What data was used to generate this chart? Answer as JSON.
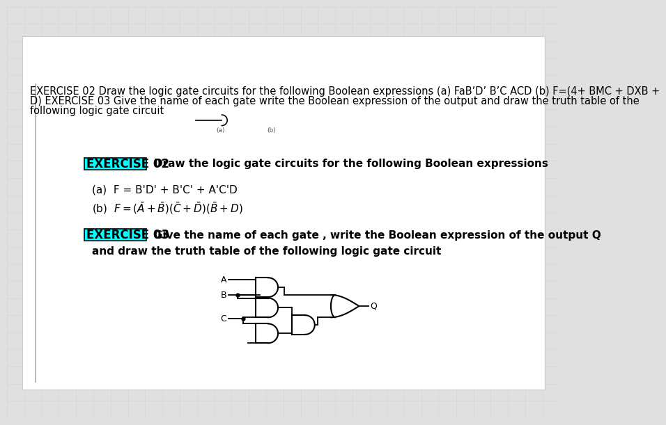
{
  "bg_color": "#e0e0e0",
  "paper_color": "#ffffff",
  "grid_color": "#cccccc",
  "header_line1": "EXERCISE 02 Draw the logic gate circuits for the following Boolean expressions (a) FaB’D’ B’C ACD (b) F=(4+ BMC + DXB +",
  "header_line2": "D) EXERCISE 03 Give the name of each gate write the Boolean expression of the output and draw the truth table of the",
  "header_line3": "following logic gate circuit",
  "ex02_label": "EXERCISE 02",
  "ex02_desc": "Draw the logic gate circuits for the following Boolean expressions",
  "ex03_label": "EXERCISE 03",
  "ex03_desc": "Give the name of each gate , write the Boolean expression of the output Q",
  "ex03_desc2": "and draw the truth table of the following logic gate circuit",
  "highlight_color": "#00ffff",
  "text_color": "#000000",
  "sidebar_color": "#bbbbbb"
}
